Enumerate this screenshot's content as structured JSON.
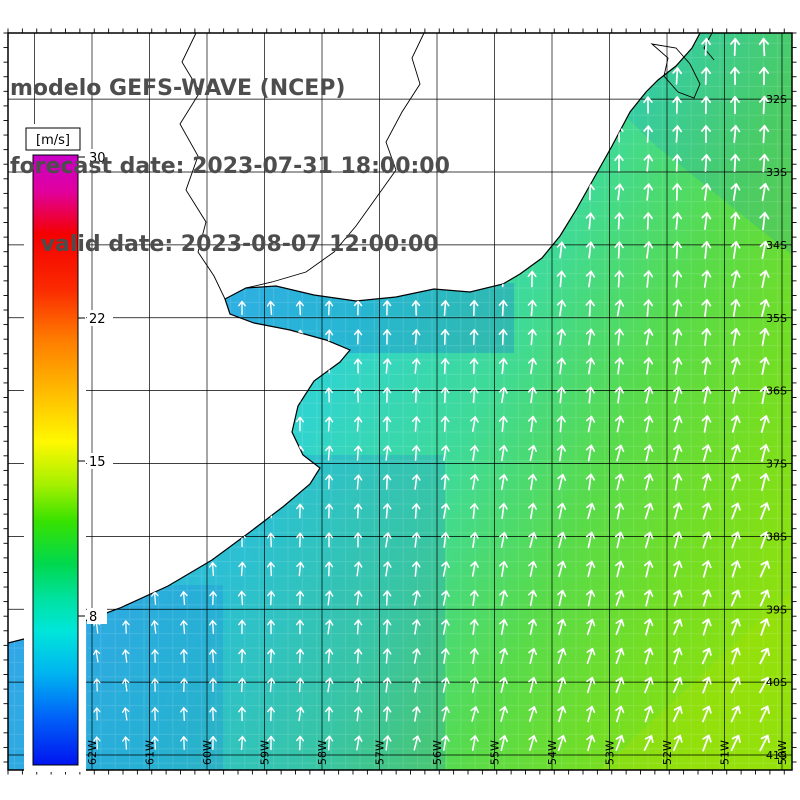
{
  "header": {
    "title": "modelo GEFS-WAVE (NCEP)",
    "forecast_line": "forecast date: 2023-07-31 18:00:00",
    "valid_line": "    valid date: 2023-08-07 12:00:00"
  },
  "colorbar": {
    "units_label": "[m/s]",
    "ticks": [
      "30",
      "22",
      "15",
      "8"
    ]
  },
  "map": {
    "lat_labels": [
      "32S",
      "33S",
      "34S",
      "35S",
      "36S",
      "37S",
      "38S",
      "39S",
      "40S",
      "41S"
    ],
    "lon_labels": [
      "62W",
      "61W",
      "60W",
      "59W",
      "58W",
      "57W",
      "56W",
      "55W",
      "54W",
      "53W",
      "52W",
      "51W",
      "50W"
    ]
  },
  "chart_data": {
    "type": "heatmap",
    "title": "modelo GEFS-WAVE (NCEP)",
    "model": "GEFS-WAVE (NCEP)",
    "forecast_date": "2023-07-31 18:00:00",
    "valid_date": "2023-08-07 12:00:00",
    "variable": "wind speed with direction vectors",
    "units": "m/s",
    "colorbar": {
      "ticks": [
        30,
        22,
        15,
        8
      ],
      "approx_range": [
        1,
        30
      ],
      "colors_top_to_bottom": [
        "magenta",
        "red",
        "orange",
        "yellow",
        "green",
        "cyan",
        "blue"
      ]
    },
    "region": "southwestern Atlantic off Argentina / Uruguay, Rio de la Plata area",
    "lat_gridlines": [
      "32S",
      "33S",
      "34S",
      "35S",
      "36S",
      "37S",
      "38S",
      "39S",
      "40S",
      "41S"
    ],
    "lon_gridlines": [
      "62W",
      "61W",
      "60W",
      "59W",
      "58W",
      "57W",
      "56W",
      "55W",
      "54W",
      "53W",
      "52W",
      "51W",
      "50W"
    ],
    "field_estimate": [
      {
        "area": "Rio de la Plata estuary and nearshore coastal strip",
        "approx_wind_ms": "4-7",
        "color": "light blue / cyan"
      },
      {
        "area": "central shelf waters",
        "approx_wind_ms": "7-10",
        "color": "cyan / teal"
      },
      {
        "area": "outer southeast offshore (bottom-right)",
        "approx_wind_ms": "10-14",
        "color": "green / yellow-green"
      }
    ],
    "vectors": "white arrows pointing roughly N near the coast, veering NE toward the southeast corner",
    "land": "white land with black coastline, rivers and lagoon outlines",
    "grid": "1-degree black graticule with minor frame ticks"
  }
}
